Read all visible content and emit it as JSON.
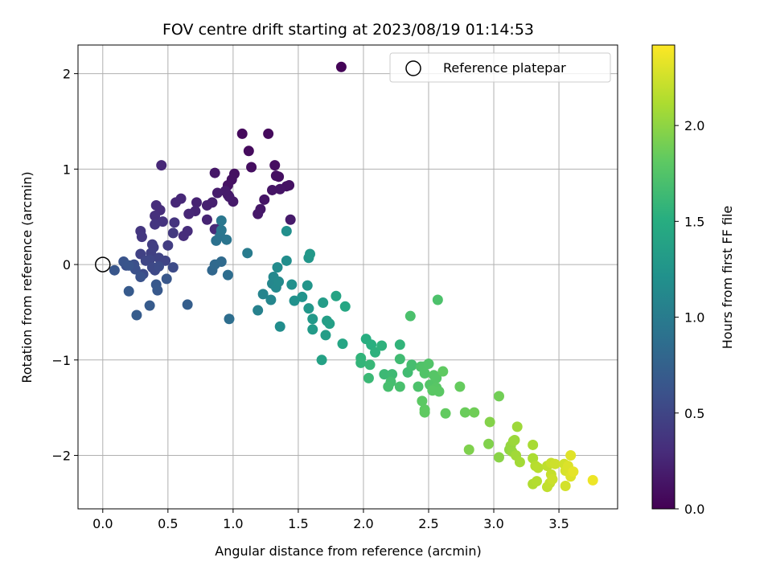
{
  "chart_data": {
    "type": "scatter",
    "title": "FOV centre drift starting at 2023/08/19 01:14:53",
    "xlabel": "Angular distance from reference (arcmin)",
    "ylabel": "Rotation from reference (arcmin)",
    "xlim": [
      -0.19,
      3.95
    ],
    "ylim": [
      -2.56,
      2.3
    ],
    "xticks": [
      0.0,
      0.5,
      1.0,
      1.5,
      2.0,
      2.5,
      3.0,
      3.5
    ],
    "xtick_labels": [
      "0.0",
      "0.5",
      "1.0",
      "1.5",
      "2.0",
      "2.5",
      "3.0",
      "3.5"
    ],
    "yticks": [
      -2,
      -1,
      0,
      1,
      2
    ],
    "ytick_labels": [
      "−2",
      "−1",
      "0",
      "1",
      "2"
    ],
    "grid": true,
    "legend": {
      "position": "upper-right",
      "entries": [
        "Reference platepar"
      ]
    },
    "reference_point": {
      "x": 0.0,
      "y": 0.0
    },
    "colorbar": {
      "label": "Hours from first FF file",
      "colormap": "viridis",
      "range": [
        0.0,
        2.42
      ],
      "ticks": [
        0.0,
        0.5,
        1.0,
        1.5,
        2.0
      ],
      "tick_labels": [
        "0.0",
        "0.5",
        "1.0",
        "1.5",
        "2.0"
      ]
    },
    "points": [
      [
        1.83,
        2.07,
        0.02
      ],
      [
        1.07,
        1.37,
        0.06
      ],
      [
        1.27,
        1.37,
        0.06
      ],
      [
        1.12,
        1.19,
        0.07
      ],
      [
        1.32,
        1.04,
        0.09
      ],
      [
        1.14,
        1.02,
        0.09
      ],
      [
        1.33,
        0.93,
        0.1
      ],
      [
        1.35,
        0.92,
        0.1
      ],
      [
        1.01,
        0.95,
        0.1
      ],
      [
        0.99,
        0.89,
        0.11
      ],
      [
        0.96,
        0.83,
        0.12
      ],
      [
        1.43,
        0.83,
        0.12
      ],
      [
        1.41,
        0.82,
        0.12
      ],
      [
        1.36,
        0.79,
        0.13
      ],
      [
        1.3,
        0.78,
        0.13
      ],
      [
        1.24,
        0.68,
        0.14
      ],
      [
        1.21,
        0.58,
        0.15
      ],
      [
        1.19,
        0.53,
        0.16
      ],
      [
        1.44,
        0.47,
        0.17
      ],
      [
        0.96,
        0.73,
        0.15
      ],
      [
        1.0,
        0.66,
        0.17
      ],
      [
        0.86,
        0.96,
        0.15
      ],
      [
        0.97,
        0.71,
        0.18
      ],
      [
        0.94,
        0.77,
        0.18
      ],
      [
        0.88,
        0.75,
        0.19
      ],
      [
        0.8,
        0.62,
        0.22
      ],
      [
        0.84,
        0.65,
        0.21
      ],
      [
        0.8,
        0.47,
        0.24
      ],
      [
        0.72,
        0.65,
        0.23
      ],
      [
        0.71,
        0.56,
        0.25
      ],
      [
        0.66,
        0.53,
        0.26
      ],
      [
        0.56,
        0.65,
        0.27
      ],
      [
        0.6,
        0.69,
        0.27
      ],
      [
        0.45,
        1.04,
        0.27
      ],
      [
        0.88,
        0.37,
        0.28
      ],
      [
        0.86,
        0.37,
        0.29
      ],
      [
        0.62,
        0.3,
        0.31
      ],
      [
        0.65,
        0.35,
        0.3
      ],
      [
        0.41,
        0.62,
        0.3
      ],
      [
        0.44,
        0.57,
        0.31
      ],
      [
        0.4,
        0.51,
        0.33
      ],
      [
        0.46,
        0.45,
        0.35
      ],
      [
        0.55,
        0.44,
        0.36
      ],
      [
        0.4,
        0.42,
        0.37
      ],
      [
        0.29,
        0.35,
        0.38
      ],
      [
        0.3,
        0.29,
        0.39
      ],
      [
        0.54,
        0.33,
        0.4
      ],
      [
        0.5,
        0.2,
        0.43
      ],
      [
        0.38,
        0.21,
        0.44
      ],
      [
        0.39,
        0.18,
        0.45
      ],
      [
        0.37,
        0.12,
        0.46
      ],
      [
        0.29,
        0.11,
        0.47
      ],
      [
        0.43,
        0.07,
        0.48
      ],
      [
        0.48,
        0.04,
        0.49
      ],
      [
        0.36,
        0.05,
        0.5
      ],
      [
        0.33,
        0.04,
        0.51
      ],
      [
        0.4,
        -0.06,
        0.53
      ],
      [
        0.38,
        -0.03,
        0.53
      ],
      [
        0.54,
        -0.03,
        0.55
      ],
      [
        0.43,
        -0.02,
        0.55
      ],
      [
        0.31,
        -0.1,
        0.56
      ],
      [
        0.18,
        -0.01,
        0.58
      ],
      [
        0.24,
        0.0,
        0.59
      ],
      [
        0.25,
        -0.05,
        0.6
      ],
      [
        0.29,
        -0.13,
        0.61
      ],
      [
        0.16,
        0.03,
        0.62
      ],
      [
        0.2,
        -0.01,
        0.63
      ],
      [
        0.09,
        -0.06,
        0.64
      ],
      [
        0.49,
        -0.15,
        0.65
      ],
      [
        0.41,
        -0.21,
        0.66
      ],
      [
        0.42,
        -0.27,
        0.67
      ],
      [
        0.2,
        -0.28,
        0.68
      ],
      [
        0.36,
        -0.43,
        0.69
      ],
      [
        0.26,
        -0.53,
        0.7
      ],
      [
        0.65,
        -0.42,
        0.72
      ],
      [
        0.84,
        -0.06,
        0.8
      ],
      [
        0.86,
        0.0,
        0.82
      ],
      [
        0.91,
        0.03,
        0.83
      ],
      [
        0.96,
        -0.11,
        0.86
      ],
      [
        0.97,
        -0.57,
        0.87
      ],
      [
        0.87,
        0.25,
        0.9
      ],
      [
        0.9,
        0.3,
        0.92
      ],
      [
        0.95,
        0.26,
        0.94
      ],
      [
        0.91,
        0.36,
        0.95
      ],
      [
        0.91,
        0.46,
        0.96
      ],
      [
        1.11,
        0.12,
        1.0
      ],
      [
        1.19,
        -0.48,
        1.05
      ],
      [
        1.23,
        -0.31,
        1.08
      ],
      [
        1.29,
        -0.37,
        1.1
      ],
      [
        1.3,
        -0.2,
        1.11
      ],
      [
        1.31,
        -0.13,
        1.12
      ],
      [
        1.33,
        -0.24,
        1.13
      ],
      [
        1.35,
        -0.18,
        1.14
      ],
      [
        1.34,
        -0.03,
        1.15
      ],
      [
        1.36,
        -0.65,
        1.17
      ],
      [
        1.41,
        0.04,
        1.18
      ],
      [
        1.41,
        0.35,
        1.19
      ],
      [
        1.45,
        -0.21,
        1.2
      ],
      [
        1.47,
        -0.38,
        1.21
      ],
      [
        1.53,
        -0.34,
        1.23
      ],
      [
        1.57,
        -0.22,
        1.25
      ],
      [
        1.58,
        -0.46,
        1.27
      ],
      [
        1.58,
        0.07,
        1.26
      ],
      [
        1.59,
        0.11,
        1.28
      ],
      [
        1.61,
        -0.57,
        1.29
      ],
      [
        1.61,
        -0.68,
        1.3
      ],
      [
        1.69,
        -0.4,
        1.32
      ],
      [
        1.71,
        -0.74,
        1.33
      ],
      [
        1.72,
        -0.59,
        1.35
      ],
      [
        1.74,
        -0.62,
        1.36
      ],
      [
        1.68,
        -1.0,
        1.38
      ],
      [
        1.79,
        -0.33,
        1.4
      ],
      [
        1.84,
        -0.83,
        1.42
      ],
      [
        1.86,
        -0.44,
        1.43
      ],
      [
        2.02,
        -0.78,
        1.5
      ],
      [
        2.06,
        -0.84,
        1.52
      ],
      [
        2.09,
        -0.92,
        1.54
      ],
      [
        2.14,
        -0.85,
        1.55
      ],
      [
        2.28,
        -0.84,
        1.57
      ],
      [
        1.98,
        -0.98,
        1.57
      ],
      [
        1.98,
        -1.03,
        1.58
      ],
      [
        2.05,
        -1.05,
        1.6
      ],
      [
        2.04,
        -1.19,
        1.62
      ],
      [
        2.16,
        -1.15,
        1.63
      ],
      [
        2.22,
        -1.15,
        1.64
      ],
      [
        2.28,
        -0.99,
        1.65
      ],
      [
        2.34,
        -1.13,
        1.66
      ],
      [
        2.37,
        -1.05,
        1.67
      ],
      [
        2.37,
        -1.06,
        1.68
      ],
      [
        2.21,
        -1.23,
        1.68
      ],
      [
        2.19,
        -1.28,
        1.69
      ],
      [
        2.28,
        -1.28,
        1.7
      ],
      [
        2.36,
        -0.54,
        1.71
      ],
      [
        2.57,
        -0.37,
        1.72
      ],
      [
        2.42,
        -1.28,
        1.72
      ],
      [
        2.44,
        -1.07,
        1.73
      ],
      [
        2.46,
        -1.07,
        1.74
      ],
      [
        2.47,
        -1.14,
        1.75
      ],
      [
        2.5,
        -1.04,
        1.75
      ],
      [
        2.51,
        -1.26,
        1.76
      ],
      [
        2.54,
        -1.16,
        1.77
      ],
      [
        2.56,
        -1.19,
        1.77
      ],
      [
        2.56,
        -1.29,
        1.78
      ],
      [
        2.58,
        -1.33,
        1.79
      ],
      [
        2.53,
        -1.32,
        1.79
      ],
      [
        2.45,
        -1.43,
        1.8
      ],
      [
        2.47,
        -1.52,
        1.81
      ],
      [
        2.47,
        -1.55,
        1.82
      ],
      [
        2.61,
        -1.12,
        1.82
      ],
      [
        2.63,
        -1.56,
        1.83
      ],
      [
        2.74,
        -1.28,
        1.84
      ],
      [
        2.78,
        -1.55,
        1.86
      ],
      [
        2.85,
        -1.55,
        1.88
      ],
      [
        3.04,
        -1.38,
        1.89
      ],
      [
        2.81,
        -1.94,
        1.94
      ],
      [
        2.96,
        -1.88,
        1.95
      ],
      [
        2.97,
        -1.65,
        1.96
      ],
      [
        3.04,
        -2.02,
        1.98
      ],
      [
        3.12,
        -1.94,
        2.0
      ],
      [
        3.13,
        -1.9,
        2.02
      ],
      [
        3.14,
        -1.96,
        2.03
      ],
      [
        3.15,
        -1.85,
        2.04
      ],
      [
        3.16,
        -1.84,
        2.05
      ],
      [
        3.18,
        -1.7,
        2.06
      ],
      [
        3.17,
        -2.0,
        2.07
      ],
      [
        3.2,
        -2.07,
        2.08
      ],
      [
        3.3,
        -1.89,
        2.1
      ],
      [
        3.3,
        -2.03,
        2.11
      ],
      [
        3.3,
        -2.3,
        2.13
      ],
      [
        3.33,
        -2.27,
        2.14
      ],
      [
        3.32,
        -2.11,
        2.15
      ],
      [
        3.34,
        -2.13,
        2.16
      ],
      [
        3.41,
        -2.11,
        2.18
      ],
      [
        3.41,
        -2.33,
        2.19
      ],
      [
        3.43,
        -2.29,
        2.2
      ],
      [
        3.44,
        -2.2,
        2.21
      ],
      [
        3.44,
        -2.08,
        2.22
      ],
      [
        3.45,
        -2.25,
        2.23
      ],
      [
        3.47,
        -2.09,
        2.24
      ],
      [
        3.54,
        -2.09,
        2.25
      ],
      [
        3.55,
        -2.32,
        2.26
      ],
      [
        3.55,
        -2.16,
        2.27
      ],
      [
        3.56,
        -2.15,
        2.28
      ],
      [
        3.57,
        -2.11,
        2.29
      ],
      [
        3.59,
        -2.22,
        2.3
      ],
      [
        3.59,
        -2.0,
        2.31
      ],
      [
        3.61,
        -2.17,
        2.33
      ],
      [
        3.76,
        -2.26,
        2.36
      ]
    ]
  }
}
